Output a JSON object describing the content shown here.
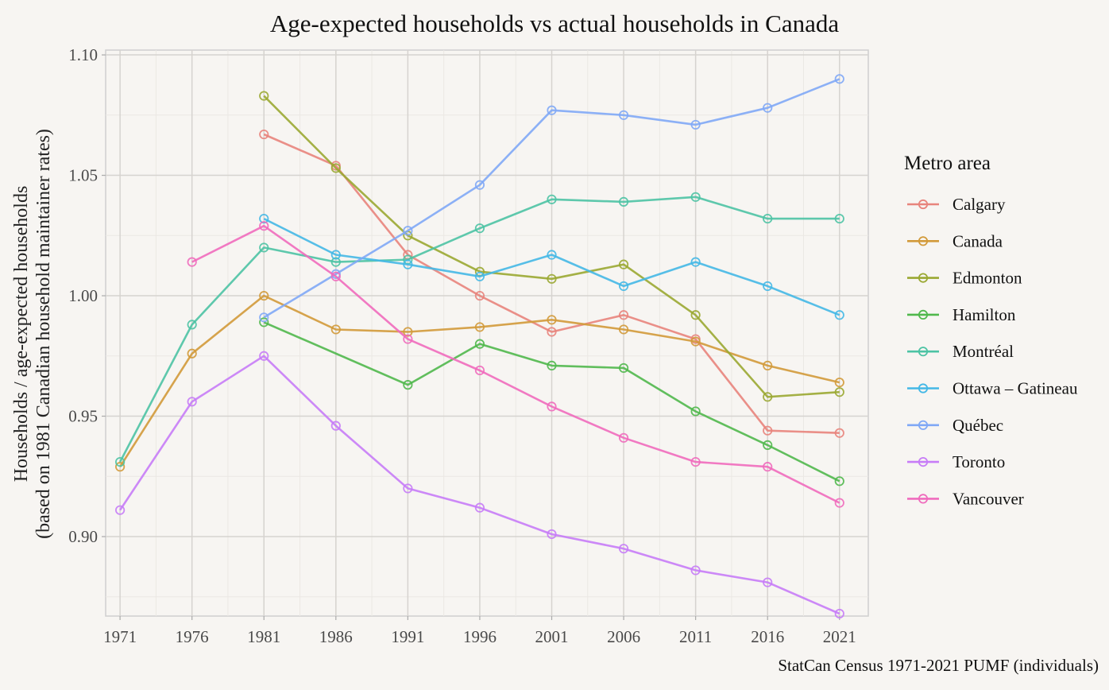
{
  "chart_data": {
    "type": "line",
    "title": "Age-expected households vs actual households in Canada",
    "ylabel_line1": "Households / age-expected households",
    "ylabel_line2": "(based on 1981 Canadian household maintainer rates)",
    "caption": "StatCan Census 1971-2021 PUMF (individuals)",
    "legend_title": "Metro area",
    "legend_position": "right",
    "grid": true,
    "x": [
      1971,
      1976,
      1981,
      1986,
      1991,
      1996,
      2001,
      2006,
      2011,
      2016,
      2021
    ],
    "x_tick_labels": [
      "1971",
      "1976",
      "1981",
      "1986",
      "1991",
      "1996",
      "2001",
      "2006",
      "2011",
      "2016",
      "2021"
    ],
    "y_ticks": [
      0.9,
      0.95,
      1.0,
      1.05,
      1.1
    ],
    "y_tick_labels": [
      "0.90",
      "0.95",
      "1.00",
      "1.05",
      "1.10"
    ],
    "xlim": [
      1970,
      2023
    ],
    "ylim": [
      0.867,
      1.102
    ],
    "series": [
      {
        "name": "Calgary",
        "color": "#e8847c",
        "values": [
          null,
          null,
          1.067,
          1.054,
          1.017,
          1.0,
          0.985,
          0.992,
          0.982,
          0.944,
          0.943
        ]
      },
      {
        "name": "Canada",
        "color": "#d29a3a",
        "values": [
          0.929,
          0.976,
          1.0,
          0.986,
          0.985,
          0.987,
          0.99,
          0.986,
          0.981,
          0.971,
          0.964
        ]
      },
      {
        "name": "Edmonton",
        "color": "#9aa832",
        "values": [
          null,
          null,
          1.083,
          1.053,
          1.025,
          1.01,
          1.007,
          1.013,
          0.992,
          0.958,
          0.96
        ]
      },
      {
        "name": "Hamilton",
        "color": "#50b84c",
        "values": [
          null,
          null,
          0.989,
          null,
          0.963,
          0.98,
          0.971,
          0.97,
          0.952,
          0.938,
          0.923
        ]
      },
      {
        "name": "Montréal",
        "color": "#4dc3a4",
        "values": [
          0.931,
          0.988,
          1.02,
          1.014,
          1.015,
          1.028,
          1.04,
          1.039,
          1.041,
          1.032,
          1.032
        ]
      },
      {
        "name": "Ottawa – Gatineau",
        "color": "#44b8e6",
        "values": [
          null,
          null,
          1.032,
          1.017,
          1.013,
          1.008,
          1.017,
          1.004,
          1.014,
          1.004,
          0.992
        ]
      },
      {
        "name": "Québec",
        "color": "#7fa8f6",
        "values": [
          null,
          null,
          0.991,
          1.009,
          1.027,
          1.046,
          1.077,
          1.075,
          1.071,
          1.078,
          1.09
        ]
      },
      {
        "name": "Toronto",
        "color": "#c77cf7",
        "values": [
          0.911,
          0.956,
          0.975,
          0.946,
          0.92,
          0.912,
          0.901,
          0.895,
          0.886,
          0.881,
          0.868
        ]
      },
      {
        "name": "Vancouver",
        "color": "#ef6bbd",
        "values": [
          null,
          1.014,
          1.029,
          1.008,
          0.982,
          0.969,
          0.954,
          0.941,
          0.931,
          0.929,
          0.914
        ]
      }
    ]
  }
}
